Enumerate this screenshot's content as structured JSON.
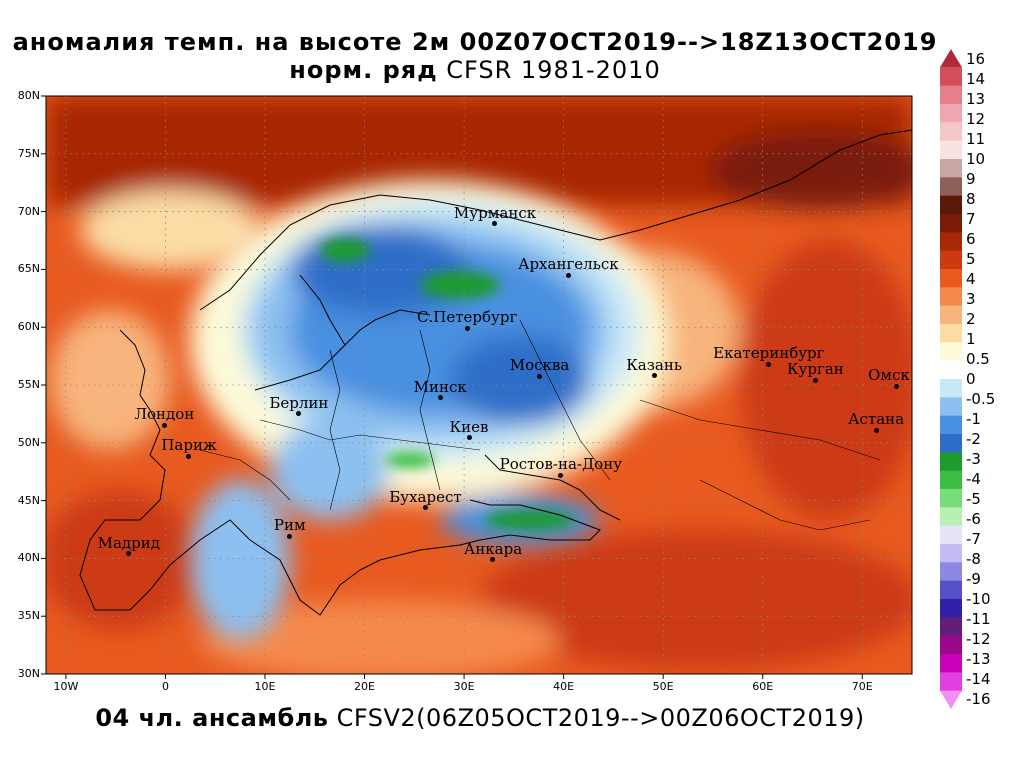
{
  "title": {
    "line1": "аномалия темп. на высоте 2м 00Z07OCT2019-->18Z13OCT2019",
    "line2_bold": "норм. ряд",
    "line2_rest": " CFSR 1981-2010"
  },
  "footer": {
    "bold": "04 чл. ансамбль",
    "rest": " CFSV2(06Z05OCT2019-->00Z06OCT2019)"
  },
  "axes": {
    "lat_labels": [
      "80N",
      "75N",
      "70N",
      "65N",
      "60N",
      "55N",
      "50N",
      "45N",
      "40N",
      "35N",
      "30N"
    ],
    "lon_labels": [
      "10W",
      "0",
      "10E",
      "20E",
      "30E",
      "40E",
      "50E",
      "60E",
      "70E"
    ]
  },
  "cities": [
    {
      "name": "Мурманск",
      "lon": 33.1,
      "lat": 68.97
    },
    {
      "name": "Архангельск",
      "lon": 40.5,
      "lat": 64.5
    },
    {
      "name": "С.Петербург",
      "lon": 30.3,
      "lat": 59.9
    },
    {
      "name": "Москва",
      "lon": 37.6,
      "lat": 55.75
    },
    {
      "name": "Казань",
      "lon": 49.1,
      "lat": 55.8
    },
    {
      "name": "Екатеринбург",
      "lon": 60.6,
      "lat": 56.8
    },
    {
      "name": "Курган",
      "lon": 65.3,
      "lat": 55.4
    },
    {
      "name": "Омск",
      "lon": 73.4,
      "lat": 54.9
    },
    {
      "name": "Астана",
      "lon": 71.4,
      "lat": 51.1
    },
    {
      "name": "Минск",
      "lon": 27.6,
      "lat": 53.9
    },
    {
      "name": "Берлин",
      "lon": 13.4,
      "lat": 52.5
    },
    {
      "name": "Лондон",
      "lon": -0.1,
      "lat": 51.5
    },
    {
      "name": "Париж",
      "lon": 2.35,
      "lat": 48.85
    },
    {
      "name": "Киев",
      "lon": 30.5,
      "lat": 50.45
    },
    {
      "name": "Ростов-на-Дону",
      "lon": 39.7,
      "lat": 47.2
    },
    {
      "name": "Бухарест",
      "lon": 26.1,
      "lat": 44.4
    },
    {
      "name": "Рим",
      "lon": 12.5,
      "lat": 41.9
    },
    {
      "name": "Мадрид",
      "lon": -3.7,
      "lat": 40.4
    },
    {
      "name": "Анкара",
      "lon": 32.9,
      "lat": 39.9
    }
  ],
  "colorbar": {
    "labels": [
      "16",
      "14",
      "13",
      "12",
      "11",
      "10",
      "9",
      "8",
      "7",
      "6",
      "5",
      "4",
      "3",
      "2",
      "1",
      "0.5",
      "0",
      "-0.5",
      "-1",
      "-2",
      "-3",
      "-4",
      "-5",
      "-6",
      "-7",
      "-8",
      "-9",
      "-10",
      "-11",
      "-12",
      "-13",
      "-14",
      "-16"
    ],
    "colors": [
      "#b02a3a",
      "#d44d5c",
      "#e4808c",
      "#f0a8b0",
      "#f4c6c8",
      "#f8e2e2",
      "#c8a8a4",
      "#8c6058",
      "#5a1808",
      "#7a1c08",
      "#a82806",
      "#cc3a12",
      "#e85a20",
      "#f5894c",
      "#f7b47c",
      "#fcdca4",
      "#fdfad8",
      "#ffffff",
      "#c8e8f8",
      "#8cc0f0",
      "#4a90e0",
      "#2e6ec8",
      "#1e9a30",
      "#3cbe46",
      "#78dc7a",
      "#b8f0b4",
      "#e8e4f8",
      "#c4bcf4",
      "#8c88e4",
      "#5850c8",
      "#3020a8",
      "#602078",
      "#980888",
      "#c800b8",
      "#e040e0",
      "#f090f0"
    ]
  },
  "map_colors": {
    "ocean_warm": "#cc3a12",
    "land_warm": "#e85a20",
    "cold_core": "#4a90e0",
    "cold_strong": "#2e6ec8",
    "very_cold": "#1e9a30",
    "neutral": "#fdfad8"
  }
}
